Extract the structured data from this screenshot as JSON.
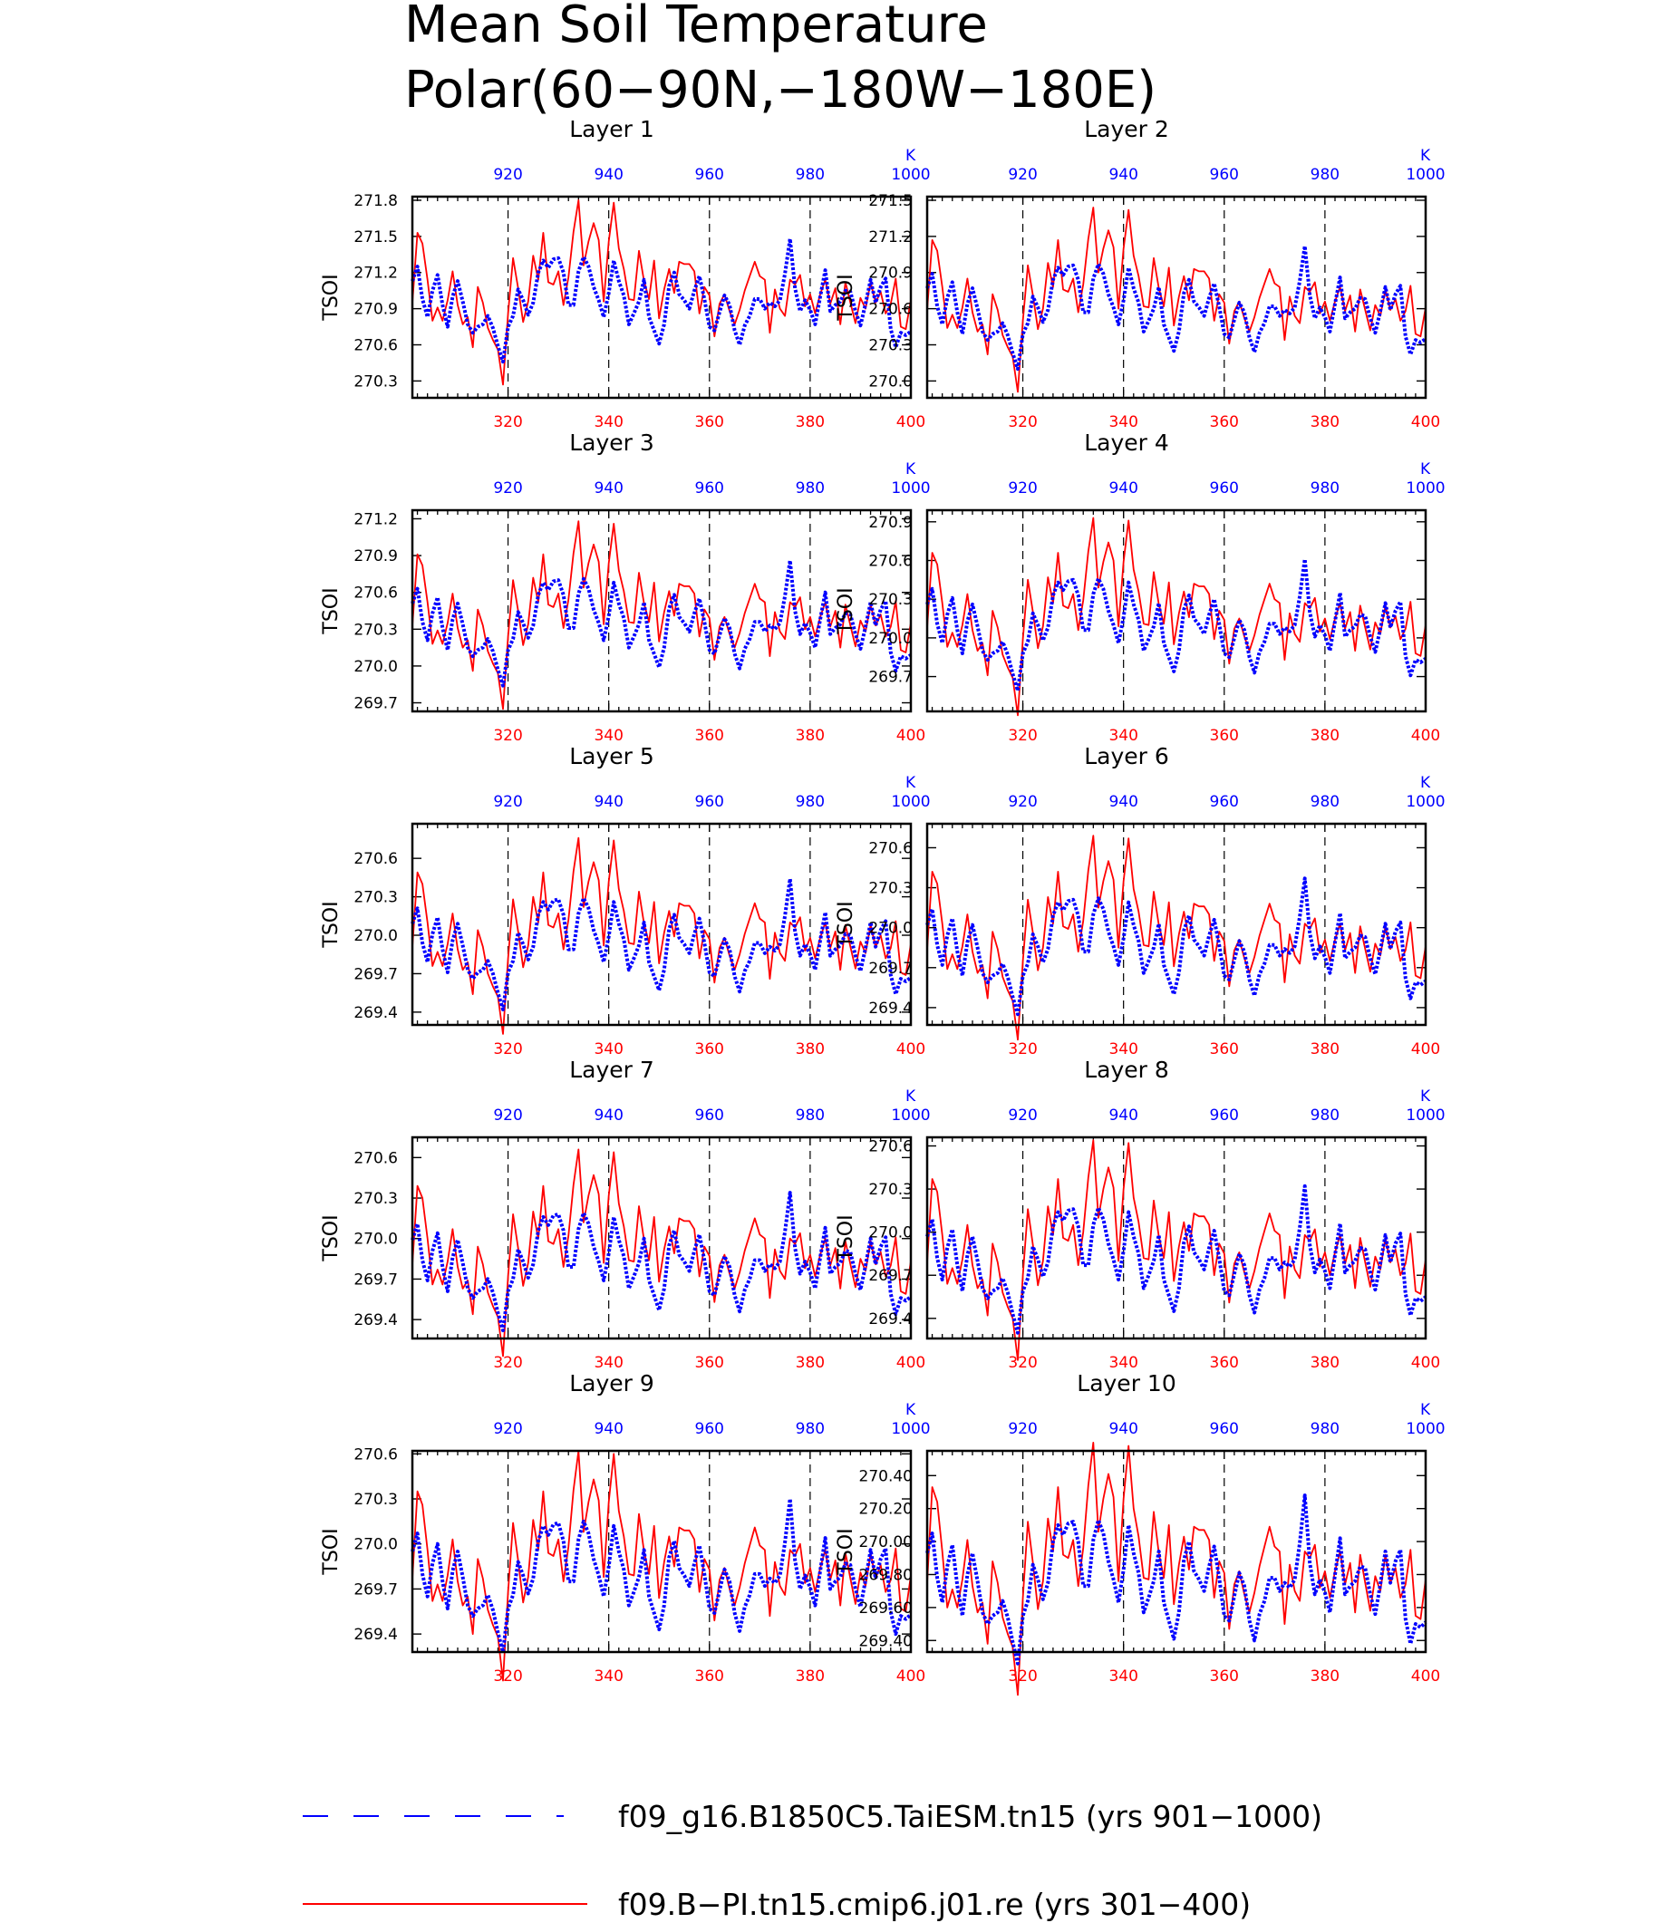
{
  "title": [
    "Mean Soil Temperature",
    "Polar(60−90N,−180W−180E)"
  ],
  "colors": {
    "case1": "#0000ff",
    "case2": "#ff0000",
    "frame": "#000000"
  },
  "legend": [
    {
      "label": "f09_g16.B1850C5.TaiESM.tn15 (yrs 901−1000)",
      "color": "#0000ff",
      "style": "dashed"
    },
    {
      "label": "f09.B−PI.tn15.cmip6.j01.re (yrs 301−400)",
      "color": "#ff0000",
      "style": "solid"
    }
  ],
  "chart_data": {
    "type": "line",
    "ylabel": "TSOI",
    "top_axis": {
      "label": "K",
      "range": [
        901,
        1000
      ],
      "ticks": [
        "920",
        "940",
        "960",
        "980",
        "1000"
      ],
      "color": "#0000ff"
    },
    "bottom_axis": {
      "range": [
        301,
        400
      ],
      "ticks": [
        "320",
        "340",
        "360",
        "380",
        "400"
      ],
      "color": "#ff0000"
    },
    "base_red": [
      270.53,
      271.11,
      271.02,
      270.72,
      270.38,
      270.49,
      270.38,
      270.55,
      270.79,
      270.51,
      270.35,
      270.41,
      270.16,
      270.66,
      270.53,
      270.32,
      270.22,
      270.14,
      269.85,
      270.44,
      270.9,
      270.65,
      270.37,
      270.54,
      270.92,
      270.72,
      271.11,
      270.7,
      270.68,
      270.79,
      270.51,
      270.74,
      271.12,
      271.38,
      270.84,
      271.04,
      271.19,
      271.05,
      270.54,
      271.04,
      271.36,
      270.98,
      270.81,
      270.56,
      270.55,
      270.96,
      270.71,
      270.56,
      270.88,
      270.4,
      270.64,
      270.81,
      270.61,
      270.87,
      270.85,
      270.85,
      270.79,
      270.44,
      270.66,
      270.59,
      270.25,
      270.52,
      270.6,
      270.46,
      270.35,
      270.47,
      270.63,
      270.75,
      270.87,
      270.75,
      270.72,
      270.28,
      270.64,
      270.48,
      270.42,
      270.72,
      270.68,
      270.76,
      270.5,
      270.6,
      270.44,
      270.6,
      270.72,
      270.52,
      270.65,
      270.35,
      270.7,
      270.53,
      270.36,
      270.57,
      270.48,
      270.7,
      270.53,
      270.62,
      270.44,
      270.52,
      270.73,
      270.33,
      270.31,
      270.55
    ],
    "base_blue": [
      270.71,
      270.83,
      270.56,
      270.41,
      270.63,
      270.76,
      270.51,
      270.33,
      270.58,
      270.71,
      270.54,
      270.35,
      270.28,
      270.33,
      270.35,
      270.42,
      270.32,
      270.17,
      270.04,
      270.33,
      270.42,
      270.64,
      270.55,
      270.43,
      270.53,
      270.78,
      270.88,
      270.82,
      270.89,
      270.9,
      270.78,
      270.51,
      270.51,
      270.79,
      270.91,
      270.83,
      270.66,
      270.55,
      270.41,
      270.61,
      270.88,
      270.71,
      270.59,
      270.35,
      270.44,
      270.54,
      270.72,
      270.41,
      270.3,
      270.19,
      270.35,
      270.67,
      270.78,
      270.6,
      270.55,
      270.48,
      270.63,
      270.75,
      270.56,
      270.33,
      270.3,
      270.45,
      270.59,
      270.51,
      270.3,
      270.18,
      270.34,
      270.42,
      270.56,
      270.56,
      270.48,
      270.53,
      270.5,
      270.55,
      270.77,
      271.06,
      270.65,
      270.46,
      270.55,
      270.47,
      270.35,
      270.58,
      270.8,
      270.46,
      270.51,
      270.54,
      270.63,
      270.62,
      270.46,
      270.34,
      270.52,
      270.72,
      270.53,
      270.66,
      270.73,
      270.31,
      270.16,
      270.28,
      270.26,
      270.29
    ],
    "panels": [
      {
        "title": "Layer 1",
        "offset": 0.42,
        "yrange": [
          270.16,
          271.83
        ],
        "yticks": [
          "270.3",
          "270.6",
          "270.9",
          "271.2",
          "271.5",
          "271.8"
        ]
      },
      {
        "title": "Layer 2",
        "offset": 0.06,
        "yrange": [
          269.86,
          271.53
        ],
        "yticks": [
          "270.0",
          "270.3",
          "270.6",
          "270.9",
          "271.2",
          "271.5"
        ]
      },
      {
        "title": "Layer 3",
        "offset": -0.2,
        "yrange": [
          269.63,
          271.27
        ],
        "yticks": [
          "269.7",
          "270.0",
          "270.3",
          "270.6",
          "270.9",
          "271.2"
        ]
      },
      {
        "title": "Layer 4",
        "offset": -0.45,
        "yrange": [
          269.43,
          270.99
        ],
        "yticks": [
          "269.7",
          "270.0",
          "270.3",
          "270.6",
          "270.9"
        ]
      },
      {
        "title": "Layer 5",
        "offset": -0.62,
        "yrange": [
          269.3,
          270.87
        ],
        "yticks": [
          "269.4",
          "269.7",
          "270.0",
          "270.3",
          "270.6"
        ]
      },
      {
        "title": "Layer 6",
        "offset": -0.69,
        "yrange": [
          269.27,
          270.78
        ],
        "yticks": [
          "269.4",
          "269.7",
          "270.0",
          "270.3",
          "270.6"
        ]
      },
      {
        "title": "Layer 7",
        "offset": -0.72,
        "yrange": [
          269.26,
          270.75
        ],
        "yticks": [
          "269.4",
          "269.7",
          "270.0",
          "270.3",
          "270.6"
        ]
      },
      {
        "title": "Layer 8",
        "offset": -0.74,
        "yrange": [
          269.26,
          270.66
        ],
        "yticks": [
          "269.4",
          "269.7",
          "270.0",
          "270.3",
          "270.6"
        ]
      },
      {
        "title": "Layer 9",
        "offset": -0.76,
        "yrange": [
          269.28,
          270.62
        ],
        "yticks": [
          "269.4",
          "269.7",
          "270.0",
          "270.3",
          "270.6"
        ]
      },
      {
        "title": "Layer 10",
        "offset": -0.78,
        "yrange": [
          269.33,
          270.55
        ],
        "yticks": [
          "269.40",
          "269.60",
          "269.80",
          "270.00",
          "270.20",
          "270.40"
        ]
      }
    ]
  }
}
